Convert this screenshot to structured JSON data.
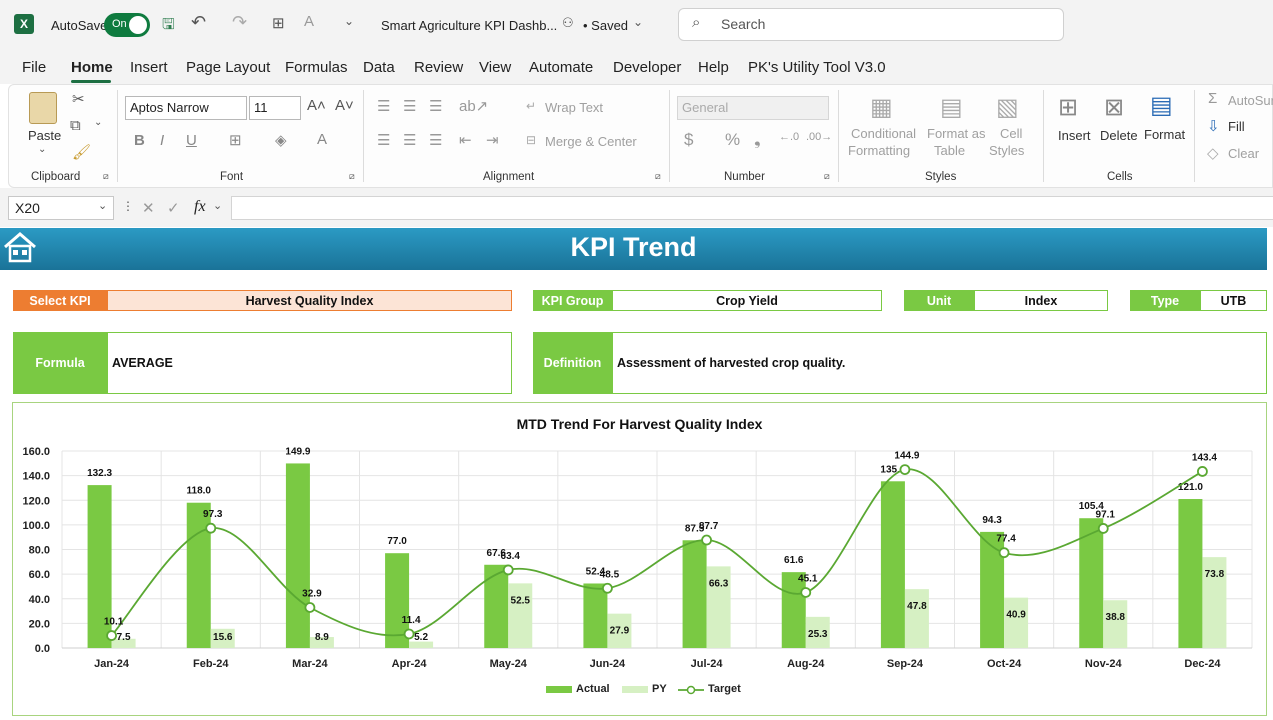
{
  "titlebar": {
    "logo": "X",
    "autosave_label": "AutoSave",
    "autosave_state": "On",
    "doc_title": "Smart Agriculture KPI Dashb...",
    "saved": "• Saved",
    "search_placeholder": "Search"
  },
  "menu": [
    "File",
    "Home",
    "Insert",
    "Page Layout",
    "Formulas",
    "Data",
    "Review",
    "View",
    "Automate",
    "Developer",
    "Help",
    "PK's Utility Tool V3.0"
  ],
  "ribbon": {
    "paste": "Paste",
    "font_name": "Aptos Narrow",
    "font_size": "11",
    "wrap_text": "Wrap Text",
    "merge_center": "Merge & Center",
    "number_format": "General",
    "conditional_formatting": [
      "Conditional",
      "Formatting"
    ],
    "format_as_table": [
      "Format as",
      "Table"
    ],
    "cell_styles": [
      "Cell",
      "Styles"
    ],
    "insert": "Insert",
    "delete": "Delete",
    "format": "Format",
    "autosum": "AutoSur",
    "fill": "Fill",
    "clear": "Clear",
    "groups": [
      "Clipboard",
      "Font",
      "Alignment",
      "Number",
      "Styles",
      "Cells"
    ]
  },
  "formula_bar": {
    "name_box": "X20",
    "fx": "fx",
    "content": ""
  },
  "banner_title": "KPI Trend",
  "kpi": {
    "select_label": "Select KPI",
    "select_value": "Harvest Quality Index",
    "group_label": "KPI Group",
    "group_value": "Crop Yield",
    "unit_label": "Unit",
    "unit_value": "Index",
    "type_label": "Type",
    "type_value": "UTB",
    "formula_label": "Formula",
    "formula_value": "AVERAGE",
    "definition_label": "Definition",
    "definition_value": "Assessment of harvested crop quality."
  },
  "colors": {
    "green": "#7ac943",
    "light_green": "#d6f0c3",
    "orange": "#ed7d31",
    "banner": "#1f84ad",
    "target_line": "#5aa832"
  },
  "chart_data": {
    "type": "bar",
    "title": "MTD Trend For Harvest Quality Index",
    "categories": [
      "Jan-24",
      "Feb-24",
      "Mar-24",
      "Apr-24",
      "May-24",
      "Jun-24",
      "Jul-24",
      "Aug-24",
      "Sep-24",
      "Oct-24",
      "Nov-24",
      "Dec-24"
    ],
    "ylim": [
      0,
      160
    ],
    "yticks": [
      "0.0",
      "20.0",
      "40.0",
      "60.0",
      "80.0",
      "100.0",
      "120.0",
      "140.0",
      "160.0"
    ],
    "grid": true,
    "legend_position": "bottom",
    "series": [
      {
        "name": "Actual",
        "kind": "bar",
        "values": [
          132.3,
          118.0,
          149.9,
          77.0,
          67.6,
          52.4,
          87.5,
          61.6,
          135.4,
          94.3,
          105.4,
          121.0
        ]
      },
      {
        "name": "PY",
        "kind": "bar",
        "values": [
          7.5,
          15.6,
          8.9,
          5.2,
          52.5,
          27.9,
          66.3,
          25.3,
          47.8,
          40.9,
          38.8,
          73.8
        ]
      },
      {
        "name": "Target",
        "kind": "line",
        "values": [
          10.1,
          97.3,
          32.9,
          11.4,
          63.4,
          48.5,
          87.7,
          45.1,
          144.9,
          77.4,
          97.1,
          143.4
        ]
      }
    ]
  }
}
